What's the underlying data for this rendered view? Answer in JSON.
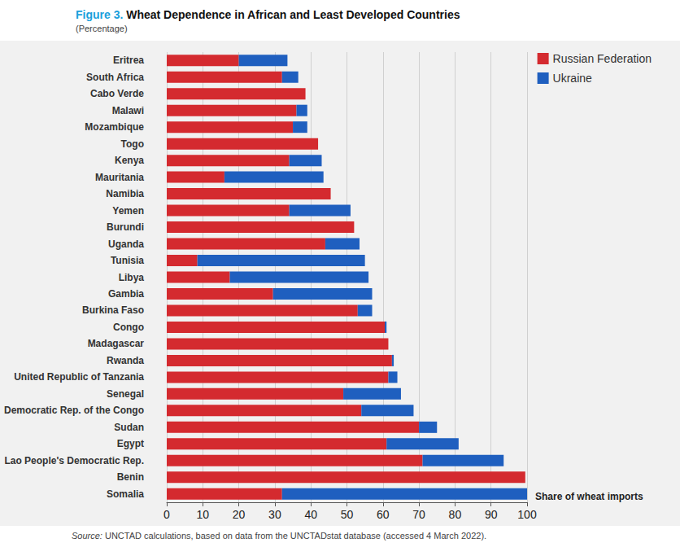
{
  "chart_data": {
    "type": "bar",
    "title": "Figure 3. Wheat Dependence in African and Least Developed Countries",
    "subtitle": "(Percentage)",
    "source": "Source: UNCTAD calculations, based on data from the UNCTADstat database (accessed 4 March 2022).",
    "xlabel": "Share of wheat imports",
    "orientation": "horizontal",
    "stacked": true,
    "grid": true,
    "legend": "top-right",
    "categories": [
      "Eritrea",
      "South Africa",
      "Cabo Verde",
      "Malawi",
      "Mozambique",
      "Togo",
      "Kenya",
      "Mauritania",
      "Namibia",
      "Yemen",
      "Burundi",
      "Uganda",
      "Tunisia",
      "Libya",
      "Gambia",
      "Burkina Faso",
      "Congo",
      "Madagascar",
      "Rwanda",
      "United Republic of Tanzania",
      "Senegal",
      "Democratic Rep. of the Congo",
      "Sudan",
      "Egypt",
      "Lao People's Democratic Rep.",
      "Benin",
      "Somalia"
    ],
    "series": [
      {
        "name": "Russian Federation",
        "color": "#d42a2f",
        "values": [
          20,
          32,
          38.5,
          36,
          35,
          42,
          34,
          16,
          45.5,
          34,
          52,
          44,
          8.5,
          17.5,
          29.5,
          53,
          60.5,
          61.5,
          62.5,
          61.5,
          49,
          54,
          70,
          61,
          71,
          99.5,
          32
        ]
      },
      {
        "name": "Ukraine",
        "color": "#1f5fbf",
        "values": [
          13.5,
          4.5,
          0,
          3,
          4,
          0,
          9,
          27.5,
          0,
          17,
          0,
          9.5,
          46.5,
          38.5,
          27.5,
          4,
          0.5,
          0,
          0.5,
          2.5,
          16,
          14.5,
          5,
          20,
          22.5,
          0,
          68
        ]
      }
    ],
    "xlim": [
      0,
      100
    ],
    "xticks": [
      0,
      10,
      20,
      30,
      40,
      50,
      60,
      70,
      80,
      90,
      100
    ]
  }
}
